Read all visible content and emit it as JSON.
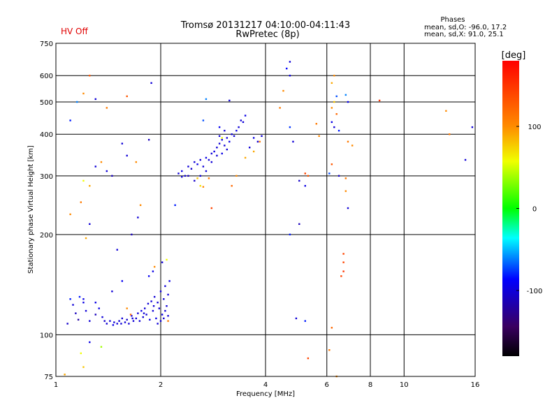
{
  "header": {
    "status": "HV Off",
    "title_line1": "Tromsø 20131217 04:10:00-04:11:43",
    "title_line2": "RwPretec (8p)",
    "stats_title": "Phases",
    "stats_line1": "mean, sd,O: -96.0, 17.2",
    "stats_line2": "mean, sd,X:  91.0, 25.1",
    "status_color": "#e00000"
  },
  "chart_data": {
    "type": "scatter",
    "title": "Tromsø 20131217 04:10:00-04:11:43",
    "subtitle": "RwPretec (8p)",
    "xlabel": "Frequency [MHz]",
    "ylabel": "Stationary phase Virtual Height [km]",
    "xscale": "log",
    "yscale": "log",
    "xlim": [
      1,
      16
    ],
    "ylim": [
      75,
      750
    ],
    "x_ticks": [
      1,
      2,
      4,
      6,
      8,
      10,
      16
    ],
    "x_tick_labels": [
      "1",
      "2",
      "4",
      "6",
      "8",
      "10",
      "16"
    ],
    "y_ticks": [
      75,
      100,
      200,
      300,
      400,
      500,
      600,
      750
    ],
    "y_tick_labels": [
      "75",
      "100",
      "200",
      "300",
      "400",
      "500",
      "600",
      "750"
    ],
    "grid": true,
    "colorbar": {
      "label": "[deg]",
      "range": [
        -180,
        180
      ],
      "ticks": [
        100,
        0,
        -100
      ],
      "tick_labels": [
        "100",
        "0",
        "-100"
      ]
    },
    "points": [
      [
        1.08,
        108,
        -105
      ],
      [
        1.12,
        123,
        -100
      ],
      [
        1.14,
        116,
        -110
      ],
      [
        1.16,
        111,
        -120
      ],
      [
        1.2,
        128,
        -95
      ],
      [
        1.22,
        118,
        -100
      ],
      [
        1.25,
        110,
        -100
      ],
      [
        1.3,
        115,
        -110
      ],
      [
        1.33,
        120,
        -95
      ],
      [
        1.36,
        113,
        -100
      ],
      [
        1.38,
        110,
        -105
      ],
      [
        1.4,
        108,
        -100
      ],
      [
        1.43,
        110,
        -100
      ],
      [
        1.46,
        107,
        -95
      ],
      [
        1.5,
        108,
        -100
      ],
      [
        1.52,
        110,
        -100
      ],
      [
        1.55,
        112,
        -100
      ],
      [
        1.58,
        109,
        -100
      ],
      [
        1.6,
        111,
        -105
      ],
      [
        1.62,
        108,
        -100
      ],
      [
        1.65,
        114,
        -95
      ],
      [
        1.67,
        110,
        -100
      ],
      [
        1.7,
        112,
        -100
      ],
      [
        1.72,
        116,
        -100
      ],
      [
        1.74,
        110,
        -100
      ],
      [
        1.76,
        118,
        -95
      ],
      [
        1.78,
        113,
        -100
      ],
      [
        1.8,
        120,
        -100
      ],
      [
        1.82,
        115,
        -100
      ],
      [
        1.84,
        124,
        -100
      ],
      [
        1.86,
        111,
        -95
      ],
      [
        1.88,
        126,
        -100
      ],
      [
        1.9,
        118,
        -100
      ],
      [
        1.92,
        130,
        -100
      ],
      [
        1.94,
        112,
        -95
      ],
      [
        1.96,
        125,
        -100
      ],
      [
        1.98,
        120,
        -100
      ],
      [
        2.0,
        135,
        -100
      ],
      [
        2.02,
        115,
        -95
      ],
      [
        2.04,
        128,
        -100
      ],
      [
        2.06,
        140,
        -100
      ],
      [
        2.08,
        122,
        -100
      ],
      [
        2.1,
        132,
        -100
      ],
      [
        2.12,
        145,
        -95
      ],
      [
        2.0,
        110,
        -100
      ],
      [
        1.96,
        108,
        -100
      ],
      [
        2.04,
        112,
        -100
      ],
      [
        2.1,
        114,
        -100
      ],
      [
        1.54,
        108,
        -100
      ],
      [
        1.47,
        109,
        -100
      ],
      [
        1.66,
        112,
        -100
      ],
      [
        1.79,
        116,
        -100
      ],
      [
        1.91,
        122,
        -100
      ],
      [
        2.06,
        118,
        -100
      ],
      [
        1.3,
        125,
        -95
      ],
      [
        1.45,
        135,
        -100
      ],
      [
        1.55,
        145,
        -90
      ],
      [
        1.5,
        180,
        -100
      ],
      [
        1.2,
        125,
        -95
      ],
      [
        1.17,
        130,
        -80
      ],
      [
        1.1,
        128,
        -80
      ],
      [
        1.85,
        150,
        -90
      ],
      [
        1.9,
        155,
        -95
      ],
      [
        2.02,
        165,
        -100
      ],
      [
        2.08,
        168,
        60
      ],
      [
        1.92,
        160,
        100
      ],
      [
        1.6,
        120,
        100
      ],
      [
        1.64,
        115,
        120
      ],
      [
        2.1,
        110,
        110
      ],
      [
        1.25,
        95,
        -95
      ],
      [
        1.35,
        92,
        40
      ],
      [
        1.18,
        88,
        60
      ],
      [
        1.2,
        80,
        80
      ],
      [
        1.06,
        76,
        90
      ],
      [
        2.25,
        305,
        -100
      ],
      [
        2.3,
        310,
        -95
      ],
      [
        2.35,
        300,
        -100
      ],
      [
        2.4,
        320,
        -100
      ],
      [
        2.45,
        315,
        -105
      ],
      [
        2.5,
        330,
        -100
      ],
      [
        2.55,
        325,
        -95
      ],
      [
        2.6,
        335,
        -100
      ],
      [
        2.65,
        320,
        -100
      ],
      [
        2.7,
        340,
        -95
      ],
      [
        2.75,
        335,
        -100
      ],
      [
        2.8,
        350,
        -100
      ],
      [
        2.85,
        355,
        -95
      ],
      [
        2.9,
        365,
        -100
      ],
      [
        2.95,
        375,
        -100
      ],
      [
        3.0,
        385,
        -95
      ],
      [
        3.05,
        370,
        -100
      ],
      [
        3.1,
        390,
        -100
      ],
      [
        3.15,
        380,
        -95
      ],
      [
        3.2,
        400,
        -100
      ],
      [
        3.25,
        395,
        -100
      ],
      [
        3.3,
        410,
        -95
      ],
      [
        3.35,
        420,
        -100
      ],
      [
        3.4,
        440,
        -100
      ],
      [
        3.45,
        435,
        -100
      ],
      [
        3.5,
        455,
        -95
      ],
      [
        2.95,
        395,
        -100
      ],
      [
        3.05,
        410,
        -100
      ],
      [
        3.1,
        360,
        -100
      ],
      [
        3.0,
        350,
        -95
      ],
      [
        2.9,
        345,
        -100
      ],
      [
        2.8,
        330,
        -100
      ],
      [
        2.7,
        310,
        -100
      ],
      [
        2.6,
        300,
        -100
      ],
      [
        2.5,
        290,
        -105
      ],
      [
        2.4,
        300,
        -110
      ],
      [
        2.3,
        298,
        -100
      ],
      [
        3.6,
        365,
        -100
      ],
      [
        3.7,
        390,
        -95
      ],
      [
        3.8,
        380,
        -100
      ],
      [
        3.9,
        395,
        -100
      ],
      [
        2.55,
        295,
        80
      ],
      [
        2.6,
        280,
        70
      ],
      [
        2.65,
        278,
        100
      ],
      [
        2.75,
        295,
        110
      ],
      [
        3.2,
        280,
        120
      ],
      [
        3.3,
        300,
        100
      ],
      [
        3.5,
        340,
        90
      ],
      [
        3.0,
        390,
        60
      ],
      [
        2.95,
        420,
        -90
      ],
      [
        2.65,
        440,
        -70
      ],
      [
        3.15,
        505,
        -100
      ],
      [
        2.7,
        510,
        -60
      ],
      [
        3.7,
        355,
        90
      ],
      [
        3.85,
        380,
        110
      ],
      [
        2.2,
        245,
        -80
      ],
      [
        2.8,
        240,
        140
      ],
      [
        4.7,
        660,
        -100
      ],
      [
        4.6,
        630,
        -85
      ],
      [
        4.7,
        600,
        -95
      ],
      [
        4.5,
        540,
        100
      ],
      [
        4.4,
        480,
        110
      ],
      [
        4.7,
        420,
        -75
      ],
      [
        4.8,
        380,
        -100
      ],
      [
        5.0,
        290,
        -105
      ],
      [
        5.2,
        280,
        -95
      ],
      [
        5.3,
        300,
        130
      ],
      [
        5.2,
        305,
        140
      ],
      [
        5.0,
        215,
        -110
      ],
      [
        4.7,
        200,
        -80
      ],
      [
        4.9,
        112,
        -100
      ],
      [
        5.2,
        110,
        -80
      ],
      [
        5.3,
        85,
        140
      ],
      [
        5.7,
        395,
        100
      ],
      [
        5.6,
        430,
        110
      ],
      [
        6.3,
        600,
        100
      ],
      [
        6.2,
        570,
        90
      ],
      [
        6.4,
        520,
        -70
      ],
      [
        6.3,
        500,
        80
      ],
      [
        6.2,
        480,
        100
      ],
      [
        6.4,
        460,
        120
      ],
      [
        6.2,
        435,
        -95
      ],
      [
        6.3,
        420,
        -100
      ],
      [
        6.5,
        410,
        -80
      ],
      [
        6.1,
        305,
        -70
      ],
      [
        6.2,
        325,
        130
      ],
      [
        6.8,
        525,
        -60
      ],
      [
        6.9,
        500,
        -90
      ],
      [
        6.9,
        380,
        110
      ],
      [
        7.1,
        370,
        100
      ],
      [
        6.5,
        300,
        80
      ],
      [
        6.8,
        295,
        110
      ],
      [
        6.5,
        300,
        -100
      ],
      [
        6.8,
        270,
        100
      ],
      [
        6.9,
        240,
        -100
      ],
      [
        6.7,
        175,
        140
      ],
      [
        6.7,
        165,
        140
      ],
      [
        6.7,
        155,
        150
      ],
      [
        6.6,
        150,
        140
      ],
      [
        6.1,
        90,
        110
      ],
      [
        6.2,
        105,
        120
      ],
      [
        6.4,
        75,
        100
      ],
      [
        8.5,
        505,
        150
      ],
      [
        13.2,
        470,
        100
      ],
      [
        13.5,
        400,
        110
      ],
      [
        15.0,
        335,
        -100
      ],
      [
        15.7,
        420,
        -100
      ],
      [
        1.1,
        440,
        -80
      ],
      [
        1.15,
        500,
        -60
      ],
      [
        1.2,
        530,
        100
      ],
      [
        1.25,
        600,
        130
      ],
      [
        1.3,
        510,
        -100
      ],
      [
        1.4,
        480,
        110
      ],
      [
        1.6,
        520,
        130
      ],
      [
        1.35,
        330,
        100
      ],
      [
        1.3,
        320,
        -100
      ],
      [
        1.2,
        290,
        60
      ],
      [
        1.18,
        250,
        110
      ],
      [
        1.25,
        280,
        90
      ],
      [
        1.4,
        310,
        -100
      ],
      [
        1.45,
        300,
        -110
      ],
      [
        1.6,
        345,
        -100
      ],
      [
        1.7,
        330,
        100
      ],
      [
        1.75,
        245,
        100
      ],
      [
        1.72,
        225,
        -100
      ],
      [
        1.65,
        200,
        -110
      ],
      [
        1.25,
        215,
        -100
      ],
      [
        1.1,
        230,
        100
      ],
      [
        1.22,
        195,
        90
      ],
      [
        1.85,
        385,
        -110
      ],
      [
        1.88,
        570,
        -100
      ],
      [
        1.55,
        375,
        -100
      ]
    ]
  }
}
